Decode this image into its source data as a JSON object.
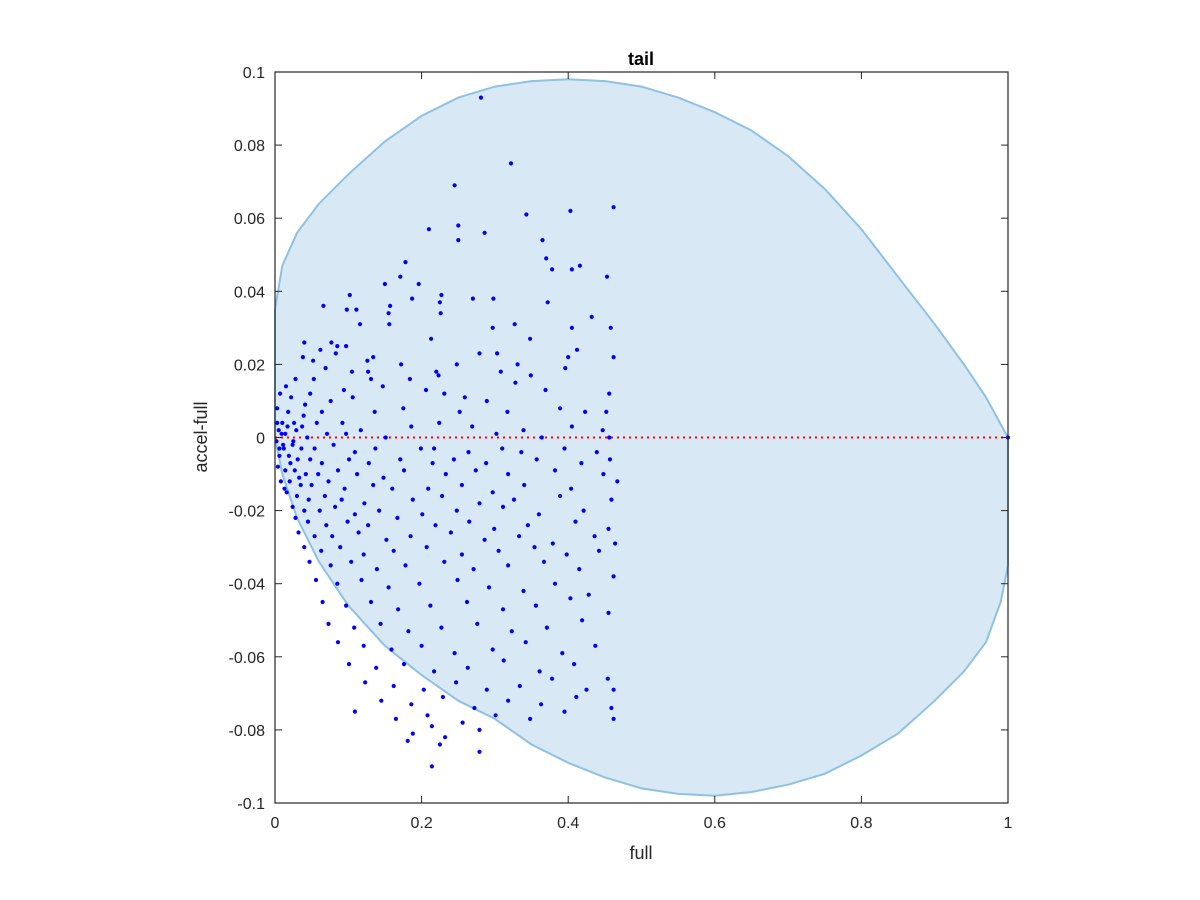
{
  "chart_data": {
    "type": "scatter",
    "title": "tail",
    "xlabel": "full",
    "ylabel": "accel-full",
    "xlim": [
      0,
      1
    ],
    "ylim": [
      -0.1,
      0.1
    ],
    "xticks": [
      "0",
      "0.2",
      "0.4",
      "0.6",
      "0.8",
      "1"
    ],
    "yticks": [
      "-0.1",
      "-0.08",
      "-0.06",
      "-0.04",
      "-0.02",
      "0",
      "0.02",
      "0.04",
      "0.06",
      "0.08",
      "0.1"
    ],
    "grid": false,
    "colors": {
      "points": "#0000ff",
      "region_fill": "#d8e8f4",
      "region_edge": "#8fc1e3",
      "zero_line": "#ff0000",
      "axes": "#262626"
    },
    "region_boundary": {
      "upper": [
        [
          0,
          0.035
        ],
        [
          0.01,
          0.047
        ],
        [
          0.03,
          0.056
        ],
        [
          0.06,
          0.064
        ],
        [
          0.1,
          0.072
        ],
        [
          0.15,
          0.081
        ],
        [
          0.2,
          0.088
        ],
        [
          0.25,
          0.093
        ],
        [
          0.3,
          0.096
        ],
        [
          0.35,
          0.0975
        ],
        [
          0.4,
          0.098
        ],
        [
          0.45,
          0.0975
        ],
        [
          0.5,
          0.096
        ],
        [
          0.55,
          0.093
        ],
        [
          0.6,
          0.089
        ],
        [
          0.65,
          0.084
        ],
        [
          0.7,
          0.077
        ],
        [
          0.75,
          0.068
        ],
        [
          0.8,
          0.057
        ],
        [
          0.85,
          0.044
        ],
        [
          0.9,
          0.031
        ],
        [
          0.94,
          0.02
        ],
        [
          0.97,
          0.011
        ],
        [
          1.0,
          0.0
        ]
      ],
      "lower": [
        [
          1.0,
          0.0
        ],
        [
          1.0,
          -0.035
        ],
        [
          0.99,
          -0.045
        ],
        [
          0.97,
          -0.056
        ],
        [
          0.94,
          -0.064
        ],
        [
          0.9,
          -0.072
        ],
        [
          0.85,
          -0.081
        ],
        [
          0.8,
          -0.087
        ],
        [
          0.75,
          -0.092
        ],
        [
          0.7,
          -0.095
        ],
        [
          0.65,
          -0.097
        ],
        [
          0.6,
          -0.098
        ],
        [
          0.55,
          -0.0975
        ],
        [
          0.5,
          -0.096
        ],
        [
          0.45,
          -0.093
        ],
        [
          0.4,
          -0.089
        ],
        [
          0.35,
          -0.084
        ],
        [
          0.3,
          -0.077
        ],
        [
          0.25,
          -0.072
        ],
        [
          0.2,
          -0.065
        ],
        [
          0.15,
          -0.057
        ],
        [
          0.1,
          -0.046
        ],
        [
          0.06,
          -0.034
        ],
        [
          0.03,
          -0.022
        ],
        [
          0.01,
          -0.01
        ],
        [
          0.0,
          0.0
        ]
      ]
    },
    "reference_line": {
      "y": 0,
      "x": [
        0,
        1
      ],
      "style": "dotted"
    },
    "points": [
      [
        0.281,
        0.093
      ],
      [
        0.322,
        0.075
      ],
      [
        0.245,
        0.069
      ],
      [
        0.462,
        0.063
      ],
      [
        0.403,
        0.062
      ],
      [
        0.343,
        0.061
      ],
      [
        0.21,
        0.057
      ],
      [
        0.25,
        0.058
      ],
      [
        0.286,
        0.056
      ],
      [
        0.25,
        0.054
      ],
      [
        0.365,
        0.054
      ],
      [
        0.37,
        0.049
      ],
      [
        0.178,
        0.048
      ],
      [
        0.405,
        0.046
      ],
      [
        0.416,
        0.047
      ],
      [
        0.378,
        0.046
      ],
      [
        0.453,
        0.044
      ],
      [
        0.171,
        0.044
      ],
      [
        0.15,
        0.042
      ],
      [
        0.196,
        0.042
      ],
      [
        0.102,
        0.039
      ],
      [
        0.227,
        0.039
      ],
      [
        0.225,
        0.037
      ],
      [
        0.298,
        0.038
      ],
      [
        0.187,
        0.038
      ],
      [
        0.157,
        0.036
      ],
      [
        0.27,
        0.038
      ],
      [
        0.372,
        0.037
      ],
      [
        0.098,
        0.035
      ],
      [
        0.111,
        0.035
      ],
      [
        0.066,
        0.036
      ],
      [
        0.226,
        0.034
      ],
      [
        0.432,
        0.033
      ],
      [
        0.155,
        0.034
      ],
      [
        0.116,
        0.031
      ],
      [
        0.156,
        0.031
      ],
      [
        0.327,
        0.031
      ],
      [
        0.458,
        0.03
      ],
      [
        0.405,
        0.03
      ],
      [
        0.297,
        0.03
      ],
      [
        0.213,
        0.027
      ],
      [
        0.348,
        0.027
      ],
      [
        0.04,
        0.026
      ],
      [
        0.077,
        0.026
      ],
      [
        0.085,
        0.025
      ],
      [
        0.062,
        0.024
      ],
      [
        0.097,
        0.025
      ],
      [
        0.412,
        0.024
      ],
      [
        0.083,
        0.023
      ],
      [
        0.038,
        0.022
      ],
      [
        0.126,
        0.021
      ],
      [
        0.134,
        0.022
      ],
      [
        0.303,
        0.023
      ],
      [
        0.279,
        0.023
      ],
      [
        0.4,
        0.022
      ],
      [
        0.462,
        0.022
      ],
      [
        0.052,
        0.021
      ],
      [
        0.069,
        0.019
      ],
      [
        0.105,
        0.018
      ],
      [
        0.172,
        0.02
      ],
      [
        0.248,
        0.02
      ],
      [
        0.331,
        0.02
      ],
      [
        0.127,
        0.018
      ],
      [
        0.22,
        0.018
      ],
      [
        0.349,
        0.017
      ],
      [
        0.396,
        0.019
      ],
      [
        0.028,
        0.016
      ],
      [
        0.053,
        0.016
      ],
      [
        0.131,
        0.016
      ],
      [
        0.184,
        0.016
      ],
      [
        0.223,
        0.017
      ],
      [
        0.308,
        0.018
      ],
      [
        0.015,
        0.014
      ],
      [
        0.048,
        0.012
      ],
      [
        0.094,
        0.013
      ],
      [
        0.147,
        0.014
      ],
      [
        0.328,
        0.015
      ],
      [
        0.369,
        0.013
      ],
      [
        0.456,
        0.012
      ],
      [
        0.206,
        0.013
      ],
      [
        0.259,
        0.011
      ],
      [
        0.007,
        0.012
      ],
      [
        0.022,
        0.011
      ],
      [
        0.041,
        0.009
      ],
      [
        0.076,
        0.01
      ],
      [
        0.106,
        0.011
      ],
      [
        0.231,
        0.012
      ],
      [
        0.289,
        0.01
      ],
      [
        0.389,
        0.008
      ],
      [
        0.003,
        0.008
      ],
      [
        0.018,
        0.007
      ],
      [
        0.039,
        0.006
      ],
      [
        0.064,
        0.007
      ],
      [
        0.136,
        0.007
      ],
      [
        0.175,
        0.008
      ],
      [
        0.252,
        0.007
      ],
      [
        0.317,
        0.007
      ],
      [
        0.423,
        0.007
      ],
      [
        0.452,
        0.007
      ],
      [
        0.01,
        0.004
      ],
      [
        0.026,
        0.004
      ],
      [
        0.057,
        0.004
      ],
      [
        0.092,
        0.004
      ],
      [
        0.117,
        0.002
      ],
      [
        0.186,
        0.003
      ],
      [
        0.224,
        0.004
      ],
      [
        0.269,
        0.003
      ],
      [
        0.339,
        0.002
      ],
      [
        0.405,
        0.003
      ],
      [
        0.447,
        0.002
      ],
      [
        0.005,
        0.002
      ],
      [
        0.014,
        0.001
      ],
      [
        0.029,
        0.002
      ],
      [
        0.044,
        0.0
      ],
      [
        0.071,
        0.001
      ],
      [
        0.097,
        0.001
      ],
      [
        0.151,
        0.0
      ],
      [
        0.302,
        0.001
      ],
      [
        0.364,
        0.0
      ],
      [
        0.456,
        0.0
      ],
      [
        0.002,
        -0.001
      ],
      [
        0.011,
        -0.002
      ],
      [
        0.024,
        -0.002
      ],
      [
        0.036,
        -0.003
      ],
      [
        0.054,
        -0.003
      ],
      [
        0.08,
        -0.002
      ],
      [
        0.109,
        -0.004
      ],
      [
        0.137,
        -0.003
      ],
      [
        0.199,
        -0.003
      ],
      [
        0.217,
        -0.003
      ],
      [
        0.264,
        -0.004
      ],
      [
        0.31,
        -0.003
      ],
      [
        0.336,
        -0.004
      ],
      [
        0.395,
        -0.003
      ],
      [
        0.439,
        -0.004
      ],
      [
        0.006,
        -0.005
      ],
      [
        0.019,
        -0.005
      ],
      [
        0.031,
        -0.006
      ],
      [
        0.048,
        -0.006
      ],
      [
        0.064,
        -0.007
      ],
      [
        0.101,
        -0.006
      ],
      [
        0.128,
        -0.007
      ],
      [
        0.171,
        -0.006
      ],
      [
        0.215,
        -0.007
      ],
      [
        0.244,
        -0.006
      ],
      [
        0.288,
        -0.007
      ],
      [
        0.357,
        -0.006
      ],
      [
        0.418,
        -0.007
      ],
      [
        0.457,
        -0.006
      ],
      [
        0.004,
        -0.008
      ],
      [
        0.014,
        -0.009
      ],
      [
        0.027,
        -0.009
      ],
      [
        0.042,
        -0.01
      ],
      [
        0.059,
        -0.01
      ],
      [
        0.086,
        -0.009
      ],
      [
        0.112,
        -0.01
      ],
      [
        0.148,
        -0.011
      ],
      [
        0.176,
        -0.009
      ],
      [
        0.233,
        -0.01
      ],
      [
        0.274,
        -0.009
      ],
      [
        0.318,
        -0.01
      ],
      [
        0.382,
        -0.009
      ],
      [
        0.448,
        -0.01
      ],
      [
        0.008,
        -0.012
      ],
      [
        0.02,
        -0.012
      ],
      [
        0.035,
        -0.013
      ],
      [
        0.05,
        -0.013
      ],
      [
        0.073,
        -0.012
      ],
      [
        0.095,
        -0.014
      ],
      [
        0.134,
        -0.013
      ],
      [
        0.16,
        -0.014
      ],
      [
        0.209,
        -0.014
      ],
      [
        0.255,
        -0.013
      ],
      [
        0.297,
        -0.015
      ],
      [
        0.34,
        -0.013
      ],
      [
        0.404,
        -0.014
      ],
      [
        0.467,
        -0.012
      ],
      [
        0.016,
        -0.015
      ],
      [
        0.03,
        -0.016
      ],
      [
        0.046,
        -0.017
      ],
      [
        0.068,
        -0.016
      ],
      [
        0.091,
        -0.017
      ],
      [
        0.122,
        -0.018
      ],
      [
        0.188,
        -0.017
      ],
      [
        0.228,
        -0.016
      ],
      [
        0.279,
        -0.018
      ],
      [
        0.326,
        -0.017
      ],
      [
        0.389,
        -0.016
      ],
      [
        0.459,
        -0.017
      ],
      [
        0.024,
        -0.019
      ],
      [
        0.04,
        -0.02
      ],
      [
        0.061,
        -0.02
      ],
      [
        0.082,
        -0.019
      ],
      [
        0.109,
        -0.021
      ],
      [
        0.142,
        -0.02
      ],
      [
        0.201,
        -0.021
      ],
      [
        0.248,
        -0.02
      ],
      [
        0.311,
        -0.019
      ],
      [
        0.36,
        -0.021
      ],
      [
        0.421,
        -0.02
      ],
      [
        0.028,
        -0.022
      ],
      [
        0.045,
        -0.023
      ],
      [
        0.07,
        -0.024
      ],
      [
        0.099,
        -0.023
      ],
      [
        0.127,
        -0.024
      ],
      [
        0.167,
        -0.022
      ],
      [
        0.219,
        -0.024
      ],
      [
        0.265,
        -0.023
      ],
      [
        0.299,
        -0.025
      ],
      [
        0.345,
        -0.024
      ],
      [
        0.41,
        -0.023
      ],
      [
        0.455,
        -0.025
      ],
      [
        0.032,
        -0.026
      ],
      [
        0.054,
        -0.027
      ],
      [
        0.078,
        -0.027
      ],
      [
        0.114,
        -0.026
      ],
      [
        0.152,
        -0.028
      ],
      [
        0.185,
        -0.027
      ],
      [
        0.24,
        -0.026
      ],
      [
        0.286,
        -0.028
      ],
      [
        0.333,
        -0.027
      ],
      [
        0.379,
        -0.029
      ],
      [
        0.436,
        -0.027
      ],
      [
        0.464,
        -0.029
      ],
      [
        0.04,
        -0.03
      ],
      [
        0.063,
        -0.031
      ],
      [
        0.089,
        -0.03
      ],
      [
        0.121,
        -0.032
      ],
      [
        0.162,
        -0.031
      ],
      [
        0.207,
        -0.03
      ],
      [
        0.255,
        -0.032
      ],
      [
        0.305,
        -0.031
      ],
      [
        0.354,
        -0.03
      ],
      [
        0.398,
        -0.032
      ],
      [
        0.442,
        -0.031
      ],
      [
        0.047,
        -0.034
      ],
      [
        0.076,
        -0.035
      ],
      [
        0.104,
        -0.034
      ],
      [
        0.139,
        -0.036
      ],
      [
        0.178,
        -0.035
      ],
      [
        0.231,
        -0.034
      ],
      [
        0.271,
        -0.036
      ],
      [
        0.318,
        -0.035
      ],
      [
        0.367,
        -0.034
      ],
      [
        0.415,
        -0.036
      ],
      [
        0.462,
        -0.038
      ],
      [
        0.056,
        -0.039
      ],
      [
        0.085,
        -0.04
      ],
      [
        0.118,
        -0.039
      ],
      [
        0.155,
        -0.041
      ],
      [
        0.197,
        -0.04
      ],
      [
        0.249,
        -0.039
      ],
      [
        0.292,
        -0.041
      ],
      [
        0.339,
        -0.042
      ],
      [
        0.382,
        -0.04
      ],
      [
        0.428,
        -0.043
      ],
      [
        0.065,
        -0.045
      ],
      [
        0.097,
        -0.046
      ],
      [
        0.131,
        -0.045
      ],
      [
        0.168,
        -0.047
      ],
      [
        0.212,
        -0.046
      ],
      [
        0.262,
        -0.045
      ],
      [
        0.311,
        -0.047
      ],
      [
        0.356,
        -0.046
      ],
      [
        0.403,
        -0.044
      ],
      [
        0.455,
        -0.048
      ],
      [
        0.073,
        -0.051
      ],
      [
        0.108,
        -0.052
      ],
      [
        0.144,
        -0.051
      ],
      [
        0.182,
        -0.053
      ],
      [
        0.227,
        -0.052
      ],
      [
        0.276,
        -0.051
      ],
      [
        0.323,
        -0.053
      ],
      [
        0.371,
        -0.052
      ],
      [
        0.419,
        -0.05
      ],
      [
        0.086,
        -0.056
      ],
      [
        0.121,
        -0.057
      ],
      [
        0.159,
        -0.058
      ],
      [
        0.2,
        -0.057
      ],
      [
        0.245,
        -0.059
      ],
      [
        0.297,
        -0.058
      ],
      [
        0.342,
        -0.056
      ],
      [
        0.392,
        -0.059
      ],
      [
        0.437,
        -0.057
      ],
      [
        0.101,
        -0.062
      ],
      [
        0.138,
        -0.063
      ],
      [
        0.176,
        -0.062
      ],
      [
        0.217,
        -0.064
      ],
      [
        0.263,
        -0.063
      ],
      [
        0.312,
        -0.061
      ],
      [
        0.361,
        -0.064
      ],
      [
        0.408,
        -0.062
      ],
      [
        0.454,
        -0.066
      ],
      [
        0.123,
        -0.067
      ],
      [
        0.162,
        -0.068
      ],
      [
        0.203,
        -0.069
      ],
      [
        0.247,
        -0.067
      ],
      [
        0.289,
        -0.069
      ],
      [
        0.334,
        -0.068
      ],
      [
        0.378,
        -0.066
      ],
      [
        0.425,
        -0.069
      ],
      [
        0.462,
        -0.069
      ],
      [
        0.145,
        -0.072
      ],
      [
        0.186,
        -0.073
      ],
      [
        0.229,
        -0.071
      ],
      [
        0.272,
        -0.074
      ],
      [
        0.318,
        -0.072
      ],
      [
        0.363,
        -0.073
      ],
      [
        0.411,
        -0.071
      ],
      [
        0.459,
        -0.074
      ],
      [
        0.109,
        -0.075
      ],
      [
        0.165,
        -0.077
      ],
      [
        0.208,
        -0.076
      ],
      [
        0.256,
        -0.078
      ],
      [
        0.301,
        -0.076
      ],
      [
        0.348,
        -0.077
      ],
      [
        0.395,
        -0.075
      ],
      [
        0.462,
        -0.077
      ],
      [
        0.188,
        -0.081
      ],
      [
        0.232,
        -0.082
      ],
      [
        0.279,
        -0.08
      ],
      [
        0.214,
        -0.079
      ],
      [
        0.181,
        -0.083
      ],
      [
        0.225,
        -0.084
      ],
      [
        0.279,
        -0.086
      ],
      [
        0.214,
        -0.09
      ],
      [
        0.012,
        -0.003
      ],
      [
        0.021,
        -0.007
      ],
      [
        0.033,
        -0.011
      ],
      [
        0.009,
        0.001
      ],
      [
        0.017,
        0.003
      ],
      [
        0.025,
        -0.001
      ],
      [
        0.037,
        0.003
      ],
      [
        0.013,
        -0.014
      ],
      [
        0.003,
        0.004
      ],
      [
        0.006,
        -0.003
      ],
      [
        1.0,
        0.0
      ]
    ]
  }
}
